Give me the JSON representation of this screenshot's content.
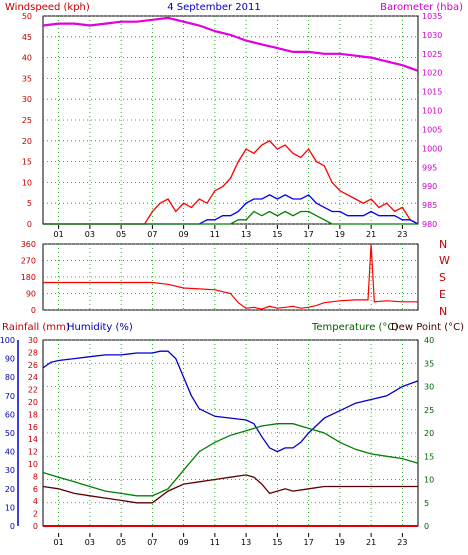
{
  "chart_data": [
    {
      "type": "line",
      "panel": "wind-barometer",
      "title": "4 September 2011",
      "left_label": "Windspeed (kph)",
      "right_label": "Barometer (hba)",
      "x_ticks": [
        "01",
        "03",
        "05",
        "07",
        "09",
        "11",
        "13",
        "15",
        "17",
        "19",
        "21",
        "23"
      ],
      "y_left_ticks": [
        "0",
        "5",
        "10",
        "15",
        "20",
        "25",
        "30",
        "35",
        "40",
        "45",
        "50"
      ],
      "y_left_range": [
        0,
        50
      ],
      "y_right_ticks": [
        "980",
        "985",
        "990",
        "995",
        "1000",
        "1005",
        "1010",
        "1015",
        "1020",
        "1025",
        "1030",
        "1035"
      ],
      "y_right_range": [
        980,
        1035
      ],
      "grid": true,
      "colors": {
        "barometer": "#e000e0",
        "gust": "#ff0000",
        "average": "#0000ff",
        "lull": "#008000",
        "title": "#0000c0",
        "left": "#c00000",
        "right": "#cc00cc"
      },
      "series": [
        {
          "key": "barometer",
          "x": [
            0,
            1,
            2,
            3,
            4,
            5,
            6,
            7,
            8,
            9,
            10,
            11,
            12,
            13,
            14,
            15,
            16,
            17,
            18,
            19,
            20,
            21,
            22,
            23,
            24
          ],
          "values": [
            1032.5,
            1033,
            1033,
            1032.5,
            1033,
            1033.5,
            1033.5,
            1034,
            1034.5,
            1033.5,
            1032.5,
            1031,
            1030,
            1028.5,
            1027.5,
            1026.5,
            1025.5,
            1025.5,
            1025,
            1025,
            1024.5,
            1024,
            1023,
            1022,
            1020.5
          ]
        },
        {
          "key": "gust",
          "x": [
            0,
            6.5,
            7,
            7.5,
            8,
            8.5,
            9,
            9.5,
            10,
            10.5,
            11,
            11.5,
            12,
            12.5,
            13,
            13.5,
            14,
            14.5,
            15,
            15.5,
            16,
            16.5,
            17,
            17.5,
            18,
            18.5,
            19,
            19.5,
            20,
            20.5,
            21,
            21.5,
            22,
            22.5,
            23,
            23.5,
            24
          ],
          "values": [
            0,
            0,
            3,
            5,
            6,
            3,
            5,
            4,
            6,
            5,
            8,
            9,
            11,
            15,
            18,
            17,
            19,
            20,
            18,
            19,
            17,
            16,
            18,
            15,
            14,
            10,
            8,
            7,
            6,
            5,
            6,
            4,
            5,
            3,
            4,
            1,
            0
          ]
        },
        {
          "key": "average",
          "x": [
            0,
            10,
            10.5,
            11,
            11.5,
            12,
            12.5,
            13,
            13.5,
            14,
            14.5,
            15,
            15.5,
            16,
            16.5,
            17,
            17.5,
            18,
            18.5,
            19,
            19.5,
            20,
            20.5,
            21,
            21.5,
            22,
            22.5,
            23,
            23.5,
            24
          ],
          "values": [
            0,
            0,
            1,
            1,
            2,
            2,
            3,
            5,
            6,
            6,
            7,
            6,
            7,
            6,
            6,
            7,
            5,
            4,
            3,
            3,
            2,
            2,
            2,
            3,
            2,
            2,
            2,
            1,
            1,
            0
          ]
        },
        {
          "key": "lull",
          "x": [
            0,
            12,
            12.5,
            13,
            13.5,
            14,
            14.5,
            15,
            15.5,
            16,
            16.5,
            17,
            17.5,
            18,
            18.5,
            24
          ],
          "values": [
            0,
            0,
            1,
            1,
            3,
            2,
            3,
            2,
            3,
            2,
            3,
            3,
            2,
            1,
            0,
            0
          ]
        }
      ]
    },
    {
      "type": "line",
      "panel": "wind-direction",
      "y_left_ticks": [
        "360",
        "270",
        "180",
        "90",
        "0"
      ],
      "y_range": [
        0,
        360
      ],
      "direction_labels": [
        "N",
        "W",
        "S",
        "E",
        "N"
      ],
      "colors": {
        "direction": "#ff0000"
      },
      "series": [
        {
          "key": "direction",
          "x": [
            0,
            7,
            8,
            9,
            10,
            11,
            12,
            12.5,
            13,
            13.5,
            14,
            14.5,
            15,
            15.5,
            16,
            16.5,
            17,
            17.5,
            18,
            19,
            20,
            20.8,
            21,
            21.2,
            22,
            23,
            24
          ],
          "values": [
            150,
            150,
            140,
            120,
            115,
            110,
            90,
            40,
            10,
            15,
            5,
            20,
            10,
            15,
            20,
            10,
            15,
            25,
            40,
            50,
            55,
            55,
            360,
            45,
            50,
            45,
            45
          ]
        }
      ]
    },
    {
      "type": "line",
      "panel": "rain-humidity-temperature",
      "left_label_1": "Rainfall (mm)",
      "left_label_2": "Humidity (%)",
      "right_label_1": "Temperature (°C)",
      "right_label_2": "Dew Point (°C)",
      "y_hum_ticks": [
        "0",
        "10",
        "20",
        "30",
        "40",
        "50",
        "60",
        "70",
        "80",
        "90",
        "100"
      ],
      "y_hum_range": [
        0,
        100
      ],
      "y_rain_ticks": [
        "0",
        "2",
        "4",
        "6",
        "8",
        "10",
        "12",
        "14",
        "16",
        "18",
        "20",
        "22",
        "24",
        "26",
        "28",
        "30"
      ],
      "y_rain_range": [
        0,
        30
      ],
      "y_temp_ticks": [
        "0",
        "5",
        "10",
        "15",
        "20",
        "25",
        "30",
        "35",
        "40"
      ],
      "y_temp_range": [
        0,
        40
      ],
      "colors": {
        "humidity": "#0000cc",
        "temperature": "#008000",
        "dewpoint": "#600000",
        "rainfall": "#e00000",
        "rain_label": "#c00000",
        "hum_label": "#0000aa",
        "temp_label": "#006000"
      },
      "series": [
        {
          "key": "humidity",
          "unit_axis": "humidity",
          "x": [
            0,
            0.5,
            1,
            2,
            3,
            4,
            5,
            6,
            7,
            7.5,
            8,
            8.5,
            9,
            9.5,
            10,
            11,
            12,
            13,
            13.5,
            14,
            14.5,
            15,
            15.5,
            16,
            16.5,
            17,
            17.5,
            18,
            19,
            20,
            21,
            22,
            23,
            24
          ],
          "values": [
            85,
            88,
            89,
            90,
            91,
            92,
            92,
            93,
            93,
            94,
            94,
            90,
            80,
            70,
            63,
            59,
            58,
            57,
            55,
            48,
            42,
            40,
            42,
            42,
            45,
            50,
            54,
            58,
            62,
            66,
            68,
            70,
            75,
            78
          ]
        },
        {
          "key": "temperature",
          "unit_axis": "temperature",
          "x": [
            0,
            1,
            2,
            3,
            4,
            5,
            6,
            7,
            8,
            9,
            10,
            11,
            12,
            13,
            14,
            15,
            16,
            17,
            18,
            19,
            20,
            21,
            22,
            23,
            24
          ],
          "values": [
            11.5,
            10.5,
            9.5,
            8.5,
            7.5,
            7,
            6.5,
            6.5,
            8,
            12,
            16,
            18,
            19.5,
            20.5,
            21.5,
            22,
            22,
            21,
            20,
            18,
            16.5,
            15.5,
            15,
            14.5,
            13.5
          ]
        },
        {
          "key": "dewpoint",
          "unit_axis": "temperature",
          "x": [
            0,
            1,
            2,
            3,
            4,
            5,
            6,
            7,
            8,
            9,
            10,
            11,
            12,
            13,
            13.5,
            14,
            14.5,
            15,
            15.5,
            16,
            17,
            18,
            19,
            20,
            21,
            22,
            23,
            24
          ],
          "values": [
            8.5,
            8,
            7,
            6.5,
            6,
            5.5,
            5,
            5,
            7.5,
            9,
            9.5,
            10,
            10.5,
            11,
            10.5,
            9,
            7,
            7.5,
            8,
            7.5,
            8,
            8.5,
            8.5,
            8.5,
            8.5,
            8.5,
            8.5,
            8.5
          ]
        },
        {
          "key": "rainfall",
          "unit_axis": "rainfall",
          "x": [
            0,
            24
          ],
          "values": [
            0,
            0
          ]
        }
      ]
    }
  ]
}
